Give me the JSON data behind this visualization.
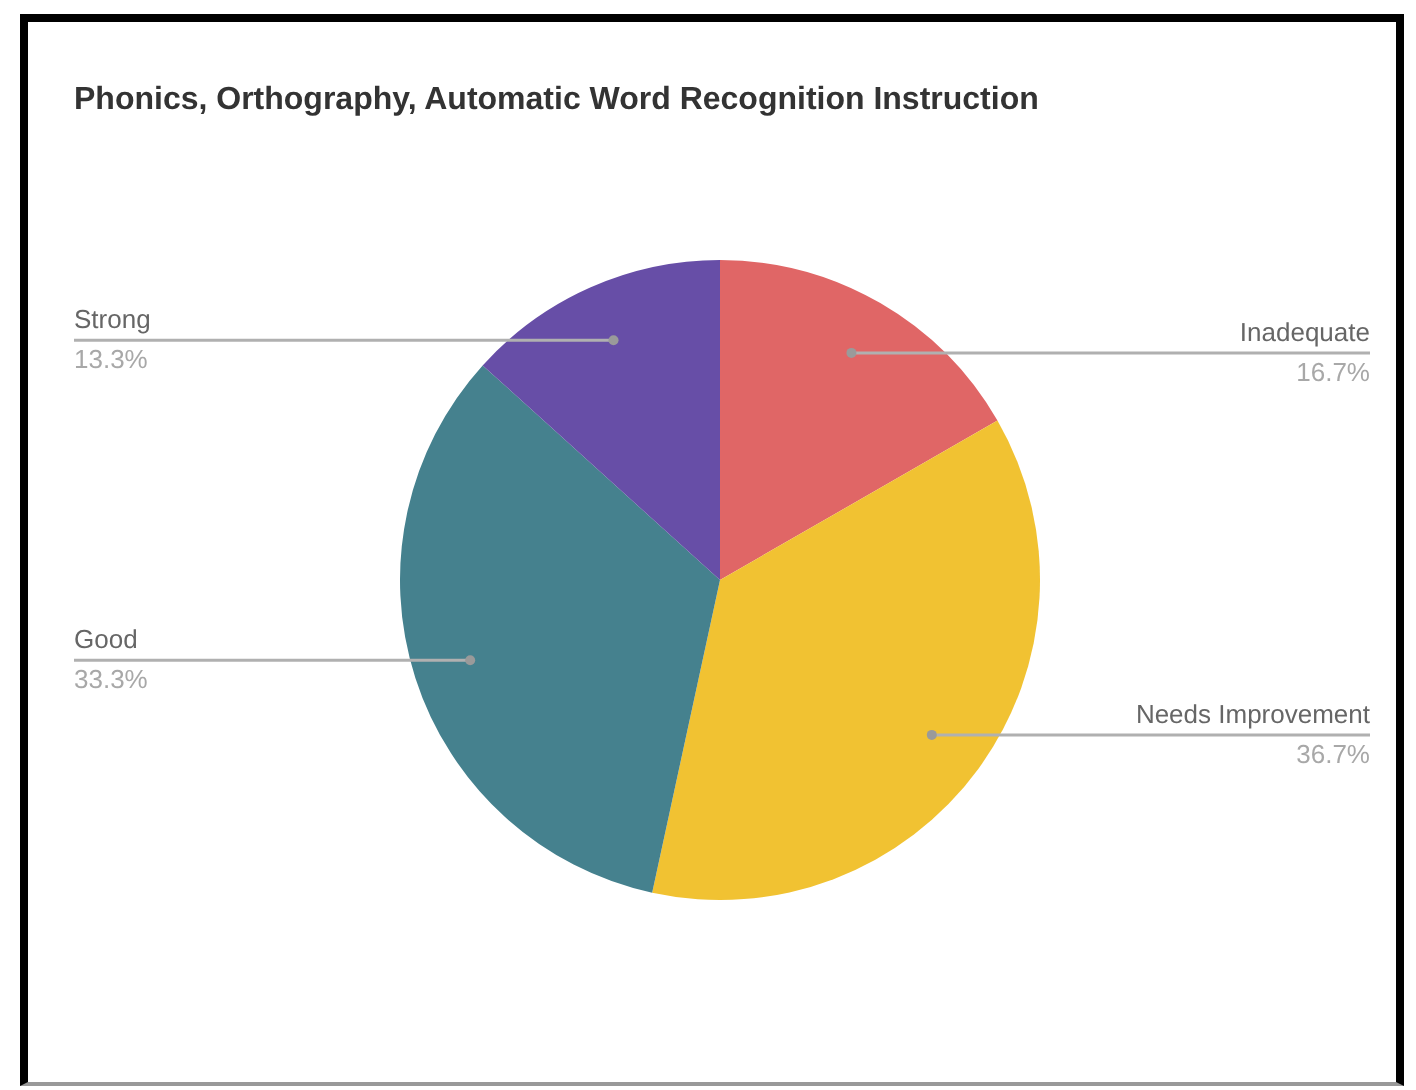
{
  "chart_data": {
    "type": "pie",
    "title": "Phonics, Orthography, Automatic Word Recognition Instruction",
    "categories": [
      "Inadequate",
      "Needs Improvement",
      "Good",
      "Strong"
    ],
    "values": [
      16.7,
      36.7,
      33.3,
      13.3
    ],
    "colors": [
      "#e06666",
      "#f1c232",
      "#45818e",
      "#674ea7"
    ],
    "value_labels": [
      "16.7%",
      "36.7%",
      "33.3%",
      "13.3%"
    ]
  }
}
